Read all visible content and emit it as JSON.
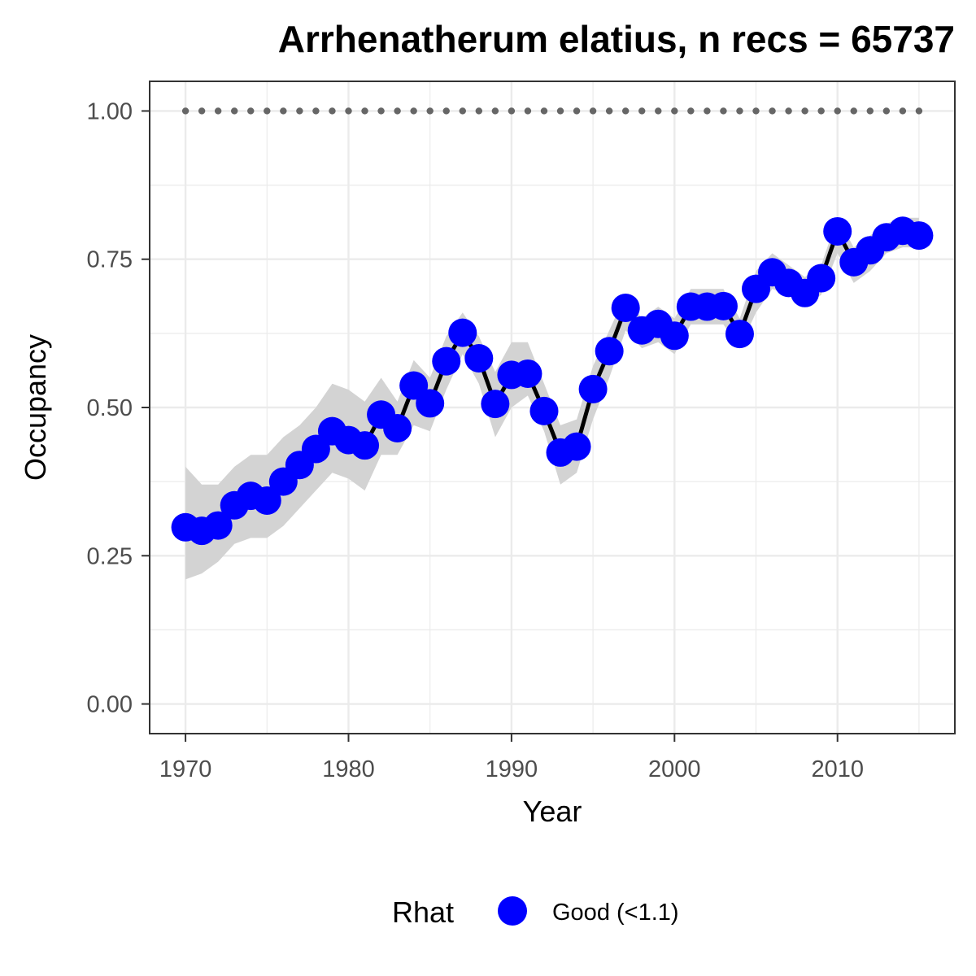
{
  "chart_data": {
    "type": "line",
    "title": "Arrhenatherum elatius, n recs = 65737",
    "xlabel": "Year",
    "ylabel": "Occupancy",
    "xlim": [
      1967.8,
      2017.2
    ],
    "ylim": [
      -0.05,
      1.05
    ],
    "x_ticks": [
      1970,
      1980,
      1990,
      2000,
      2010
    ],
    "x_tick_labels": [
      "1970",
      "1980",
      "1990",
      "2000",
      "2010"
    ],
    "y_ticks": [
      0,
      0.25,
      0.5,
      0.75,
      1.0
    ],
    "y_tick_labels": [
      "0.00",
      "0.25",
      "0.50",
      "0.75",
      "1.00"
    ],
    "grid": true,
    "legend": {
      "title": "Rhat",
      "entries": [
        "Good (<1.1)"
      ],
      "position": "bottom"
    },
    "colors": {
      "points": "#0000ff",
      "line": "#000000",
      "ribbon": "#d3d3d3",
      "reference_dots": "#666666",
      "grid": "#ebebeb",
      "panel_border": "#333333"
    },
    "reference_line": {
      "y": 1.0,
      "style": "dotted",
      "x_range": [
        1970,
        2015
      ]
    },
    "series": [
      {
        "x": [
          1970,
          1971,
          1972,
          1973,
          1974,
          1975,
          1976,
          1977,
          1978,
          1979,
          1980,
          1981,
          1982,
          1983,
          1984,
          1985,
          1986,
          1987,
          1988,
          1989,
          1990,
          1991,
          1992,
          1993,
          1994,
          1995,
          1996,
          1997,
          1998,
          1999,
          2000,
          2001,
          2002,
          2003,
          2004,
          2005,
          2006,
          2007,
          2008,
          2009,
          2010,
          2011,
          2012,
          2013,
          2014,
          2015
        ],
        "y": [
          0.298,
          0.292,
          0.301,
          0.335,
          0.351,
          0.343,
          0.375,
          0.403,
          0.43,
          0.46,
          0.445,
          0.436,
          0.488,
          0.465,
          0.537,
          0.507,
          0.578,
          0.626,
          0.583,
          0.506,
          0.555,
          0.557,
          0.494,
          0.424,
          0.434,
          0.531,
          0.595,
          0.668,
          0.63,
          0.641,
          0.621,
          0.67,
          0.67,
          0.671,
          0.624,
          0.7,
          0.728,
          0.71,
          0.693,
          0.718,
          0.797,
          0.745,
          0.765,
          0.787,
          0.798,
          0.79
        ],
        "lower": [
          0.21,
          0.22,
          0.24,
          0.27,
          0.28,
          0.28,
          0.3,
          0.33,
          0.36,
          0.39,
          0.38,
          0.36,
          0.42,
          0.42,
          0.47,
          0.46,
          0.53,
          0.59,
          0.54,
          0.45,
          0.5,
          0.52,
          0.46,
          0.37,
          0.39,
          0.48,
          0.55,
          0.63,
          0.6,
          0.61,
          0.59,
          0.64,
          0.64,
          0.64,
          0.6,
          0.66,
          0.7,
          0.69,
          0.67,
          0.69,
          0.76,
          0.71,
          0.73,
          0.76,
          0.77,
          0.77
        ],
        "upper": [
          0.4,
          0.37,
          0.37,
          0.4,
          0.42,
          0.42,
          0.45,
          0.47,
          0.5,
          0.54,
          0.53,
          0.51,
          0.55,
          0.51,
          0.58,
          0.55,
          0.62,
          0.66,
          0.62,
          0.56,
          0.61,
          0.61,
          0.54,
          0.47,
          0.48,
          0.57,
          0.63,
          0.69,
          0.65,
          0.67,
          0.65,
          0.7,
          0.7,
          0.7,
          0.65,
          0.73,
          0.76,
          0.74,
          0.72,
          0.74,
          0.82,
          0.77,
          0.79,
          0.81,
          0.82,
          0.82
        ]
      }
    ]
  }
}
